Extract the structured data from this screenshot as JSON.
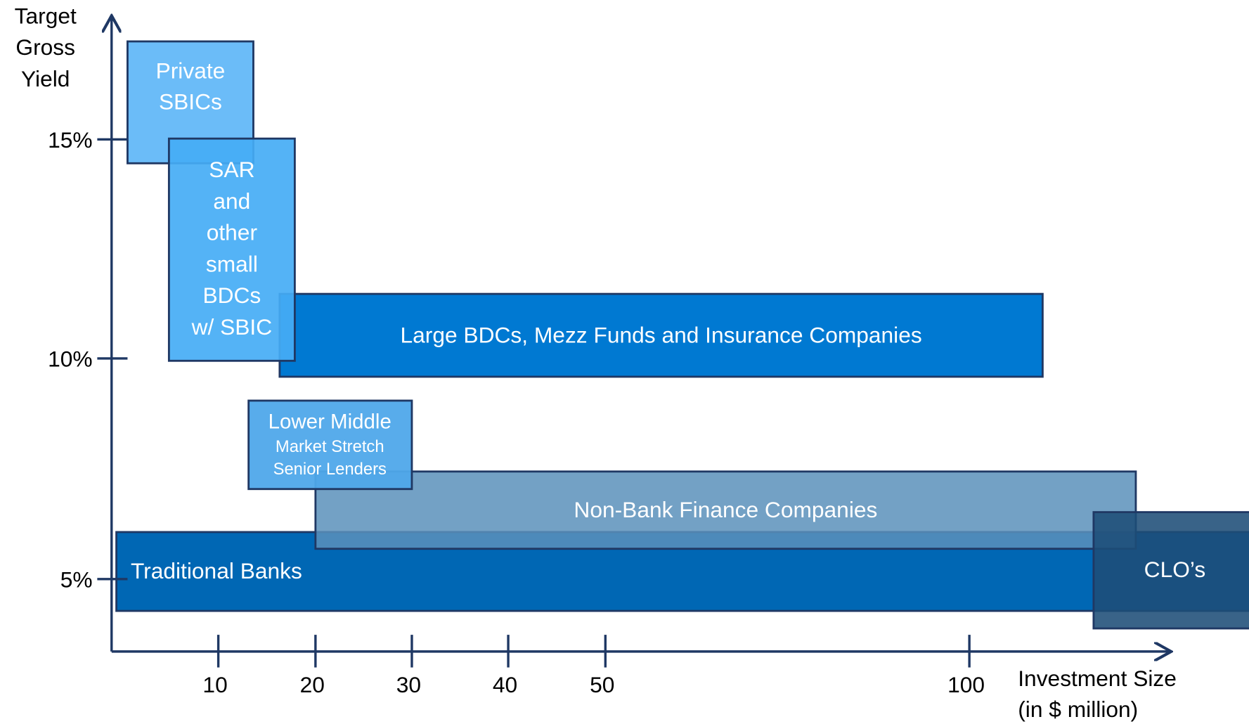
{
  "y_axis": {
    "label": [
      "Target",
      "Gross",
      "Yield"
    ],
    "ticks": [
      "15%",
      "10%",
      "5%"
    ]
  },
  "x_axis": {
    "label": [
      "Investment Size",
      "(in $ million)"
    ],
    "ticks": [
      "10",
      "20",
      "30",
      "40",
      "50",
      "100"
    ]
  },
  "boxes": [
    {
      "label": [
        "Traditional Banks"
      ]
    },
    {
      "label": [
        "Non-Bank Finance Companies"
      ]
    },
    {
      "label": [
        "CLO’s"
      ]
    },
    {
      "label": [
        "Large BDCs, Mezz Funds and Insurance Companies"
      ]
    },
    {
      "label": [
        "Private",
        "SBICs"
      ]
    },
    {
      "label": [
        "SAR",
        "and",
        "other",
        "small",
        "BDCs",
        "w/ SBIC"
      ]
    },
    {
      "label": [
        "Lower Middle",
        "Market Stretch",
        "Senior Lenders"
      ]
    }
  ]
}
